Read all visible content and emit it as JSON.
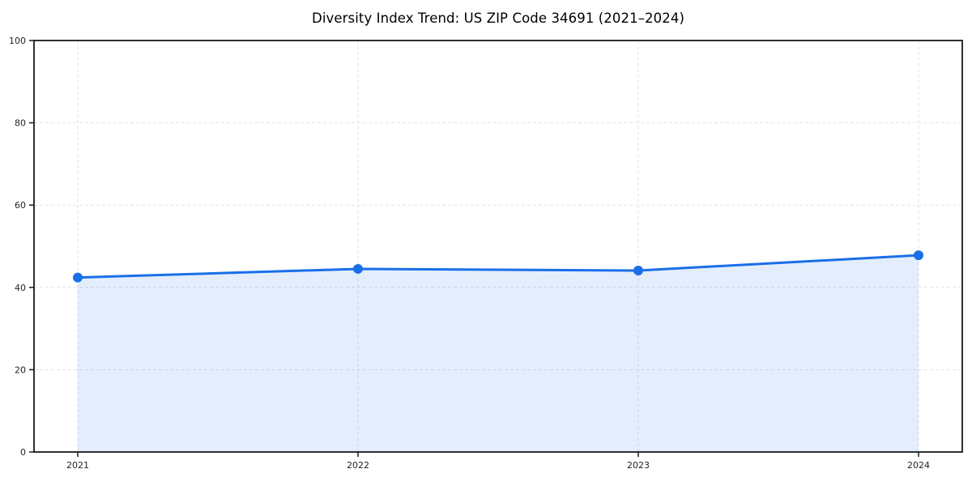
{
  "figure": {
    "background": "#ffffff"
  },
  "chart_data": {
    "type": "line",
    "title": "Diversity Index Trend: US ZIP Code 34691 (2021–2024)",
    "categories": [
      "2021",
      "2022",
      "2023",
      "2024"
    ],
    "series": [
      {
        "name": "Diversity Index",
        "values": [
          42.4,
          44.5,
          44.1,
          47.8
        ]
      }
    ],
    "xlabel": "",
    "ylabel": "",
    "ylim": [
      0,
      100
    ],
    "yticks": [
      0,
      20,
      40,
      60,
      80,
      100
    ],
    "grid": true,
    "grid_style": "dashed",
    "legend_position": "none",
    "area_fill_to_zero": true,
    "colors": {
      "line": "#1a6fe8",
      "marker": "#1a6fe8",
      "fill": "#1a6fe8",
      "fill_opacity": 0.12,
      "grid": "#e2e2e2",
      "spine": "#1a1a1a",
      "tick_label": "#1f1f1f",
      "title": "#000000"
    }
  }
}
